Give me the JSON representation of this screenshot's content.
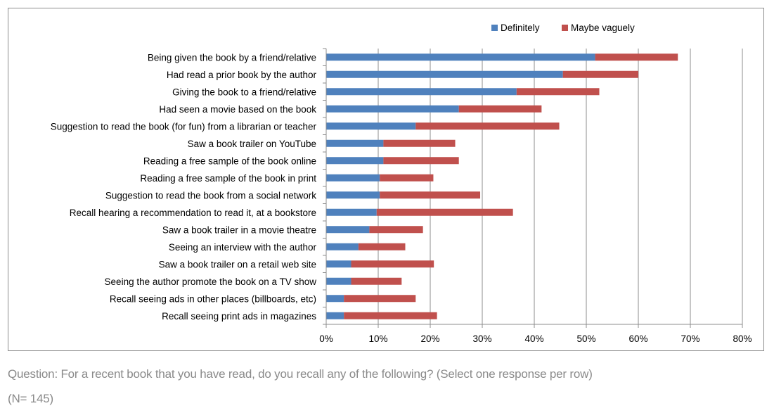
{
  "chart_data": {
    "type": "bar",
    "orientation": "horizontal",
    "stacked": true,
    "categories": [
      "Being given the book by a friend/relative",
      "Had read a prior book by the author",
      "Giving the book to a friend/relative",
      "Had seen a movie based on the book",
      "Suggestion to read the book (for fun) from a librarian or teacher",
      "Saw a book trailer on YouTube",
      "Reading a free sample of the book online",
      "Reading a free sample of the book in print",
      "Suggestion to read the book from a social network ",
      "Recall hearing a recommendation to read it, at a bookstore",
      "Saw a book trailer in a movie theatre",
      "Seeing an interview with the author",
      "Saw a book trailer on a retail web site",
      "Seeing the author promote the book on a TV show",
      "Recall seeing ads in other places (billboards, etc)",
      "Recall seeing print ads in magazines"
    ],
    "series": [
      {
        "name": "Definitely",
        "color": "#4f81bd",
        "values": [
          51.7,
          45.5,
          36.6,
          25.5,
          17.2,
          11.0,
          11.0,
          10.3,
          10.3,
          9.7,
          8.3,
          6.2,
          4.8,
          4.8,
          3.4,
          3.4
        ]
      },
      {
        "name": "Maybe vaguely",
        "color": "#c0504d",
        "values": [
          15.9,
          14.5,
          15.9,
          15.9,
          27.6,
          13.8,
          14.5,
          10.3,
          19.3,
          26.2,
          10.3,
          9.0,
          15.9,
          9.7,
          13.8,
          17.9
        ]
      }
    ],
    "xlim": [
      0,
      80
    ],
    "xticks": [
      "0%",
      "10%",
      "20%",
      "30%",
      "40%",
      "50%",
      "60%",
      "70%",
      "80%"
    ],
    "gridlines": "vertical",
    "legend_position": "top-right",
    "caption": "Question: For a recent book that you have read, do you recall any of the following? (Select one response per row)",
    "note": "(N= 145)"
  }
}
